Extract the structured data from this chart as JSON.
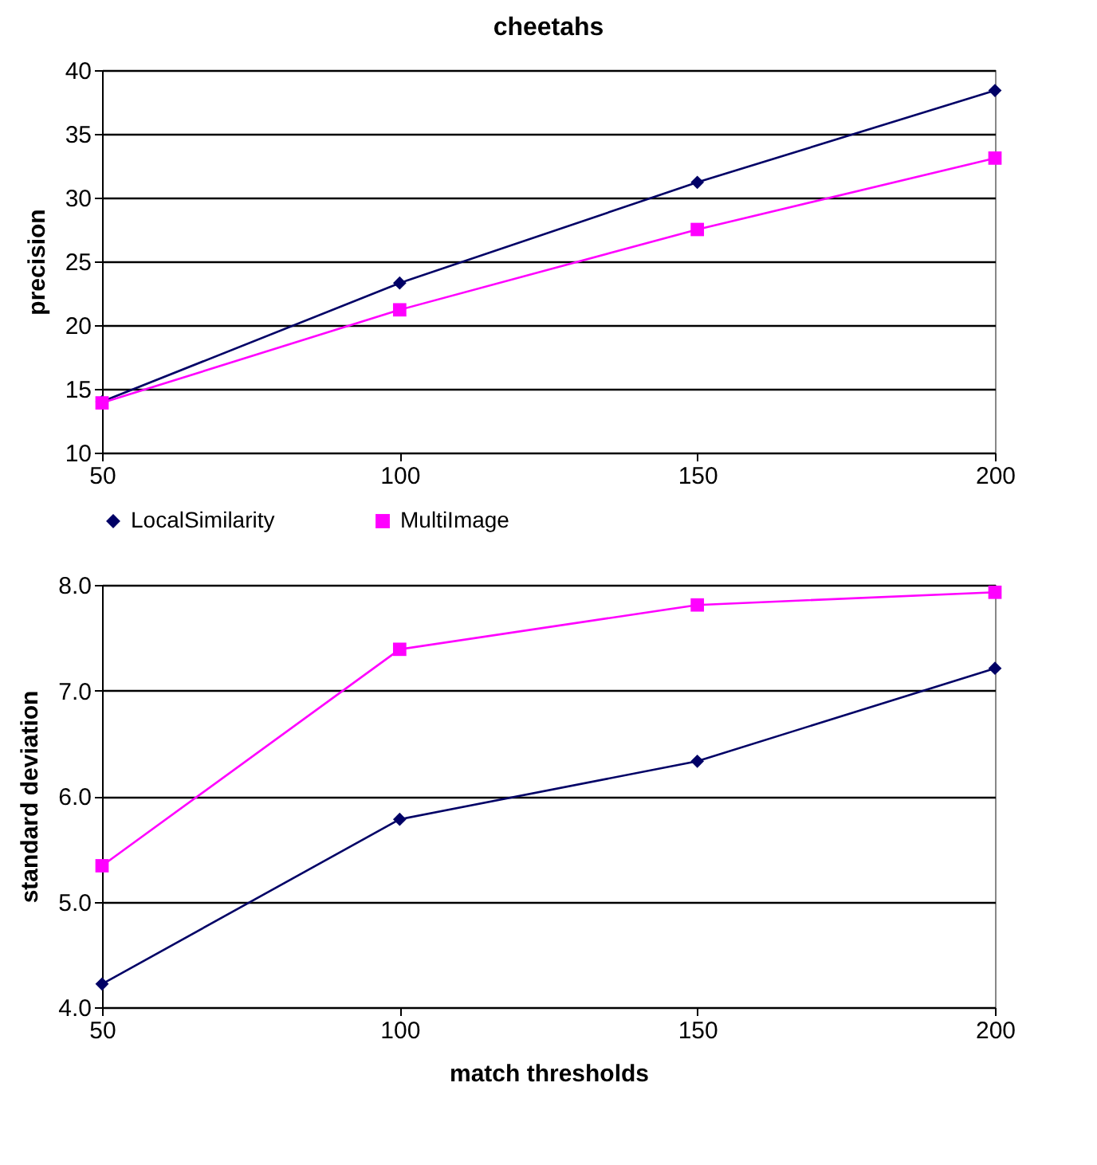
{
  "chart_data": [
    {
      "type": "line",
      "title": "cheetahs",
      "ylabel": "precision",
      "x": [
        50,
        100,
        150,
        200
      ],
      "xlim": [
        50,
        200
      ],
      "xticks": [
        50,
        100,
        150,
        200
      ],
      "ylim": [
        10,
        40
      ],
      "yticks": [
        10,
        15,
        20,
        25,
        30,
        35,
        40
      ],
      "grid": "y",
      "legend": "bottom",
      "series": [
        {
          "name": "LocalSimilarity",
          "color": "#000066",
          "marker": "diamond",
          "values": [
            14,
            23.3,
            31.2,
            38.4
          ]
        },
        {
          "name": "MultiImage",
          "color": "#ff00ff",
          "marker": "square",
          "values": [
            13.9,
            21.2,
            27.5,
            33.1
          ]
        }
      ]
    },
    {
      "type": "line",
      "xlabel": "match thresholds",
      "ylabel": "standard deviation",
      "x": [
        50,
        100,
        150,
        200
      ],
      "xlim": [
        50,
        200
      ],
      "xticks": [
        50,
        100,
        150,
        200
      ],
      "ylim": [
        4,
        8
      ],
      "yticks": [
        {
          "value": 4,
          "label": "4.0"
        },
        {
          "value": 5,
          "label": "5.0"
        },
        {
          "value": 6,
          "label": "6.0"
        },
        {
          "value": 7,
          "label": "7.0"
        },
        {
          "value": 8,
          "label": "8.0"
        }
      ],
      "grid": "y",
      "series": [
        {
          "color": "#000066",
          "marker": "diamond",
          "values": [
            4.22,
            5.78,
            6.33,
            7.21
          ]
        },
        {
          "color": "#ff00ff",
          "marker": "square",
          "values": [
            5.34,
            7.39,
            7.81,
            7.93
          ]
        }
      ]
    }
  ]
}
